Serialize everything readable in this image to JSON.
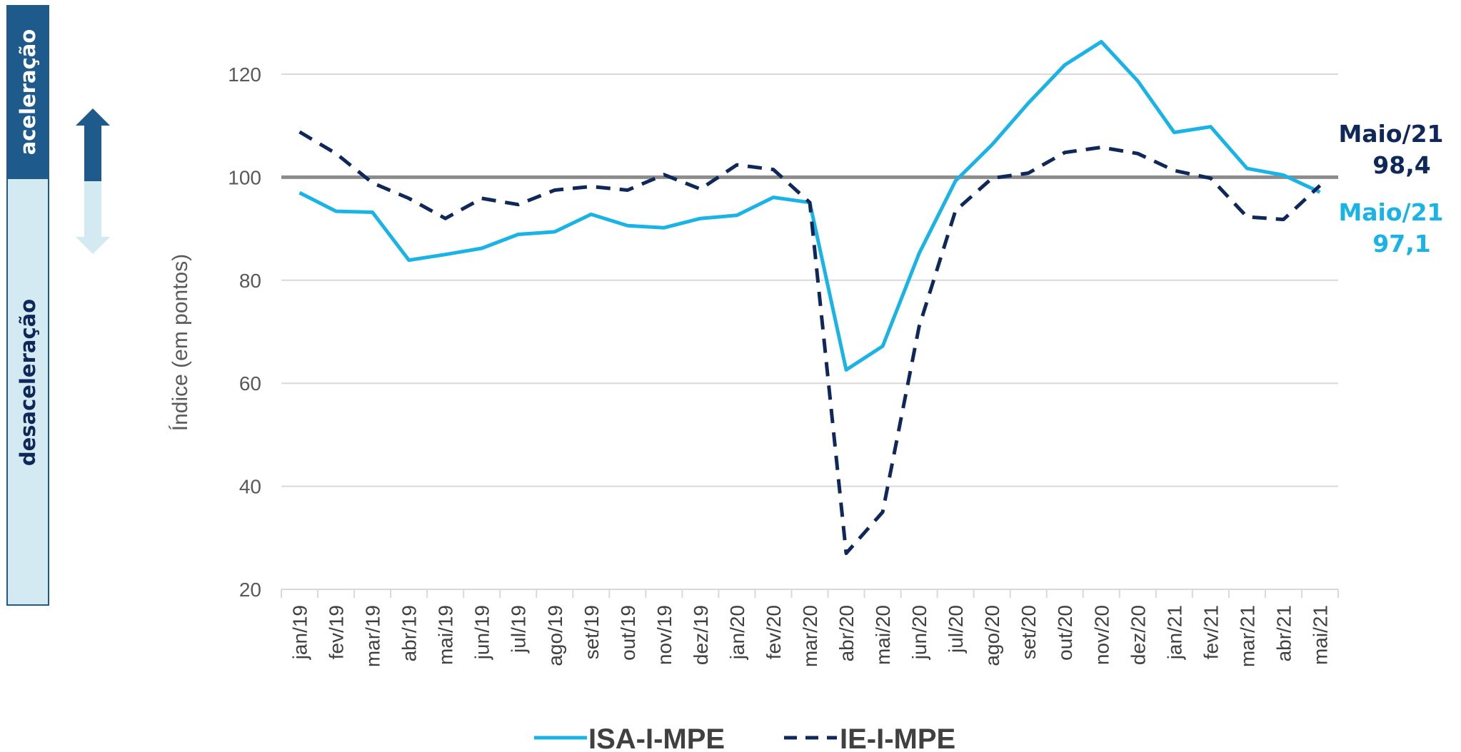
{
  "chart_data": {
    "type": "line",
    "ylabel": "Índice (em pontos)",
    "xlabel": "",
    "ylim": [
      20,
      130
    ],
    "yticks": [
      20,
      40,
      60,
      80,
      100,
      120
    ],
    "reference_line": 100,
    "grid": true,
    "legend_position": "bottom-center",
    "categories": [
      "jan/19",
      "fev/19",
      "mar/19",
      "abr/19",
      "mai/19",
      "jun/19",
      "jul/19",
      "ago/19",
      "set/19",
      "out/19",
      "nov/19",
      "dez/19",
      "jan/20",
      "fev/20",
      "mar/20",
      "abr/20",
      "mai/20",
      "jun/20",
      "jul/20",
      "ago/20",
      "set/20",
      "out/20",
      "nov/20",
      "dez/20",
      "jan/21",
      "fev/21",
      "mar/21",
      "abr/21",
      "mai/21"
    ],
    "series": [
      {
        "name": "ISA-I-MPE",
        "style": "solid",
        "color": "#19B3E6",
        "values": [
          97.0,
          93.4,
          93.2,
          83.9,
          85.0,
          86.2,
          88.9,
          89.4,
          92.8,
          90.6,
          90.2,
          92.0,
          92.6,
          96.1,
          95.1,
          62.6,
          67.2,
          85.2,
          99.3,
          106.3,
          114.4,
          121.8,
          126.3,
          118.7,
          108.7,
          109.8,
          101.7,
          100.4,
          97.1
        ]
      },
      {
        "name": "IE-I-MPE",
        "style": "dashed",
        "color": "#0F2859",
        "values": [
          108.8,
          104.6,
          98.9,
          95.9,
          92.0,
          95.9,
          94.7,
          97.5,
          98.2,
          97.5,
          100.5,
          97.7,
          102.4,
          101.5,
          95.1,
          27.0,
          35.0,
          71.0,
          93.5,
          99.8,
          100.8,
          104.8,
          105.8,
          104.6,
          101.3,
          99.8,
          92.3,
          91.8,
          98.4
        ]
      }
    ],
    "annotations": [
      {
        "line1": "Maio/21",
        "line2": "98,4",
        "color": "#0F2859"
      },
      {
        "line1": "Maio/21",
        "line2": "97,1",
        "color": "#19B3E6"
      }
    ],
    "side_bands": {
      "upper_label": "aceleração",
      "upper_color": "#1E5A8C",
      "lower_label": "desaceleração",
      "lower_color": "#D4EAF2",
      "arrow_up_color": "#1E5A8C",
      "arrow_down_color": "#D4EAF2"
    }
  }
}
